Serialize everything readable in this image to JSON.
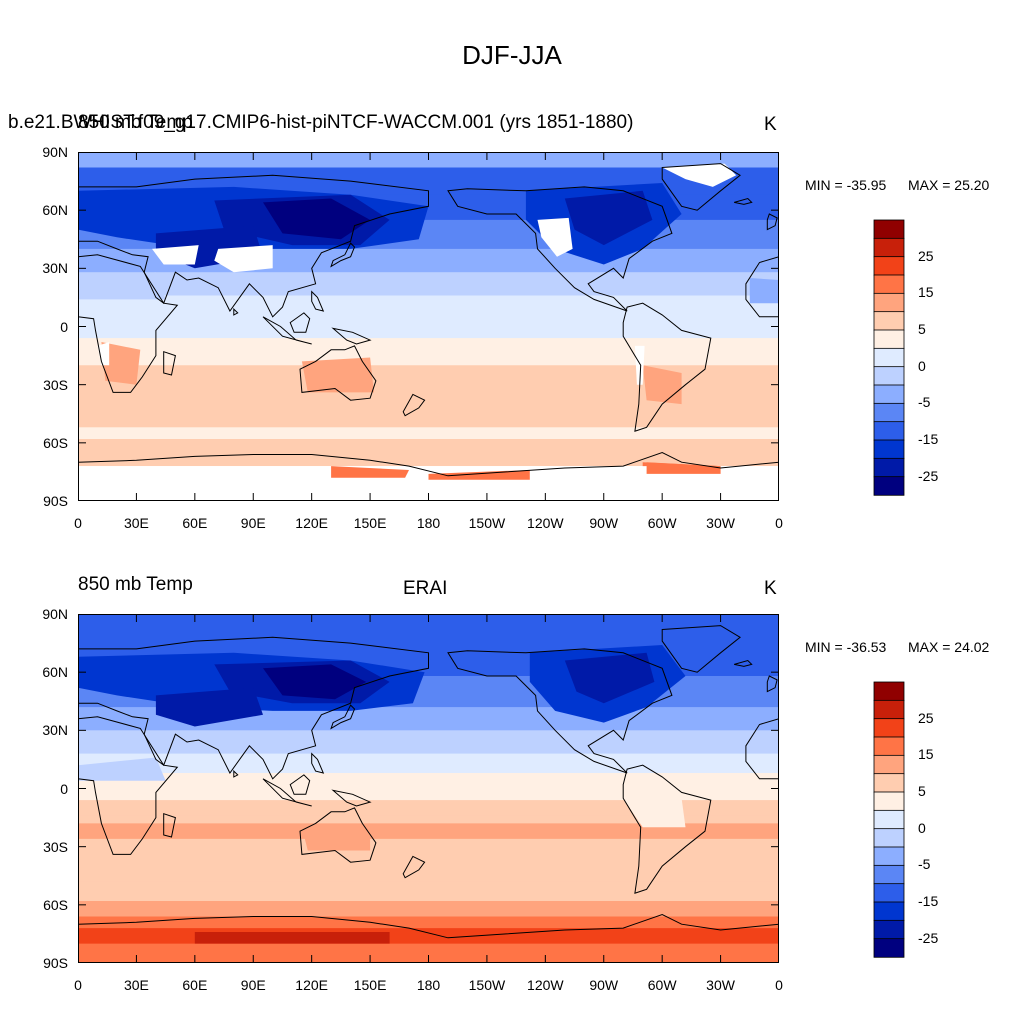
{
  "figure": {
    "title": "DJF-JJA"
  },
  "colors": {
    "levels": [
      -30,
      -25,
      -20,
      -15,
      -10,
      -5,
      -2,
      0,
      2,
      5,
      10,
      15,
      20,
      25,
      30
    ],
    "palette": [
      "#00007f",
      "#001aa8",
      "#0036d0",
      "#2d5eea",
      "#5b86f5",
      "#8caeff",
      "#bdd1ff",
      "#dfebff",
      "#fff0e4",
      "#ffcdb0",
      "#ffa47e",
      "#ff7446",
      "#f24218",
      "#c8200a",
      "#900000"
    ],
    "missing": "#ffffff",
    "coast": "#000000"
  },
  "panels": [
    {
      "id": "top",
      "left_label": "850 mb Temp",
      "case_label": "b.e21.BWHIST.f09_g17.CMIP6-hist-piNTCF-WACCM.001 (yrs 1851-1880)",
      "center_label": "",
      "unit_label": "K",
      "min_label": "MIN = -35.95",
      "max_label": "MAX =  25.20",
      "has_missing": true
    },
    {
      "id": "bottom",
      "left_label": "850 mb Temp",
      "case_label": "",
      "center_label": "ERAI",
      "unit_label": "K",
      "min_label": "MIN = -36.53",
      "max_label": "MAX =  24.02",
      "has_missing": false
    }
  ],
  "axes": {
    "lat_ticks": [
      "90N",
      "60N",
      "30N",
      "0",
      "30S",
      "60S",
      "90S"
    ],
    "lon_ticks": [
      "0",
      "30E",
      "60E",
      "90E",
      "120E",
      "150E",
      "180",
      "150W",
      "120W",
      "90W",
      "60W",
      "30W",
      "0"
    ]
  },
  "colorbar": {
    "labels": [
      "25",
      "15",
      "5",
      "0",
      "-5",
      "-15",
      "-25"
    ]
  }
}
